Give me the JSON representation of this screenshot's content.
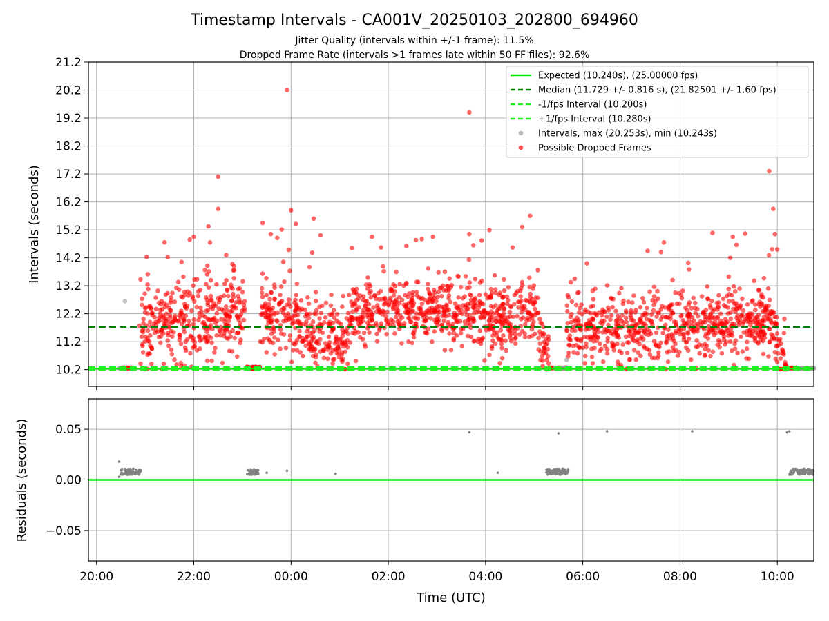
{
  "figure": {
    "title": "Timestamp Intervals - CA001V_20250103_202800_694960",
    "subtitle_1": "Jitter Quality (intervals within +/-1 frame): 11.5%",
    "subtitle_2": "Dropped Frame Rate (intervals >1 frames late within 50 FF files): 92.6%"
  },
  "colors": {
    "expected": "#00ee00",
    "median": "#008000",
    "fps_interval": "#22ee22",
    "intervals": "#999999",
    "dropped": "#ff0000",
    "residuals": "#808080",
    "grid": "#b0b0b0"
  },
  "chart_data": [
    {
      "type": "scatter",
      "panel": "top",
      "ylabel": "Intervals (seconds)",
      "xlabel": "",
      "ylim": [
        9.6,
        21.2
      ],
      "y_ticks": [
        "10.2",
        "11.2",
        "12.2",
        "13.2",
        "14.2",
        "15.2",
        "16.2",
        "17.2",
        "18.2",
        "19.2",
        "20.2",
        "21.2"
      ],
      "grid": true,
      "legend_position": "top-right",
      "legend": [
        {
          "label": "Expected (10.240s), (25.00000 fps)",
          "style": "solid-line",
          "color_key": "expected"
        },
        {
          "label": "Median (11.729 +/- 0.816 s), (21.82501 +/- 1.60 fps)",
          "style": "dashed-line",
          "color_key": "median"
        },
        {
          "label": "-1/fps Interval (10.200s)",
          "style": "dashed-line",
          "color_key": "fps_interval"
        },
        {
          "label": "+1/fps Interval (10.280s)",
          "style": "dashed-line",
          "color_key": "fps_interval"
        },
        {
          "label": "Intervals, max (20.253s), min (10.243s)",
          "style": "dot",
          "color_key": "intervals"
        },
        {
          "label": "Possible Dropped Frames",
          "style": "dot",
          "color_key": "dropped"
        }
      ],
      "reference_lines": {
        "expected": 10.24,
        "median": 11.729,
        "minus_fps": 10.2,
        "plus_fps": 10.28
      },
      "dense_segments": [
        {
          "start": "20:53",
          "end": "23:05",
          "trend": "rise",
          "base": 11.9,
          "spread": 0.65
        },
        {
          "start": "23:05",
          "end": "23:22",
          "trend": "flat",
          "base": 10.26,
          "spread": 0.02
        },
        {
          "start": "23:22",
          "end": "01:10",
          "trend": "fall",
          "base": 11.9,
          "spread": 0.6
        },
        {
          "start": "01:10",
          "end": "04:15",
          "trend": "hump",
          "base": 12.1,
          "spread": 0.6
        },
        {
          "start": "04:15",
          "end": "05:05",
          "trend": "rise",
          "base": 12.2,
          "spread": 0.6
        },
        {
          "start": "05:05",
          "end": "05:18",
          "trend": "fall",
          "base": 11.2,
          "spread": 0.5
        },
        {
          "start": "05:40",
          "end": "09:55",
          "trend": "rise",
          "base": 11.8,
          "spread": 0.6
        },
        {
          "start": "09:55",
          "end": "10:12",
          "trend": "fall",
          "base": 11.0,
          "spread": 0.5
        }
      ],
      "flat_clusters": [
        {
          "start": "20:28",
          "end": "20:40",
          "value": 10.25,
          "color_key": "intervals"
        },
        {
          "start": "20:32",
          "end": "20:45",
          "value": 10.26,
          "color_key": "dropped"
        },
        {
          "start": "23:05",
          "end": "23:20",
          "value": 10.26,
          "color_key": "dropped"
        },
        {
          "start": "05:18",
          "end": "05:40",
          "value": 10.26,
          "color_key": "dropped"
        },
        {
          "start": "05:25",
          "end": "05:42",
          "value": 10.25,
          "color_key": "intervals"
        },
        {
          "start": "10:10",
          "end": "10:25",
          "value": 10.26,
          "color_key": "dropped"
        },
        {
          "start": "10:25",
          "end": "10:45",
          "value": 10.25,
          "color_key": "intervals"
        }
      ],
      "outliers": [
        {
          "t": "20:35",
          "y": 12.65,
          "color_key": "intervals"
        },
        {
          "t": "21:55",
          "y": 14.85,
          "color_key": "dropped"
        },
        {
          "t": "22:00",
          "y": 14.95,
          "color_key": "dropped"
        },
        {
          "t": "22:20",
          "y": 14.75,
          "color_key": "dropped"
        },
        {
          "t": "22:30",
          "y": 17.1,
          "color_key": "dropped"
        },
        {
          "t": "22:30",
          "y": 15.95,
          "color_key": "dropped"
        },
        {
          "t": "22:40",
          "y": 14.3,
          "color_key": "dropped"
        },
        {
          "t": "23:25",
          "y": 15.45,
          "color_key": "dropped"
        },
        {
          "t": "23:35",
          "y": 15.05,
          "color_key": "dropped"
        },
        {
          "t": "23:55",
          "y": 20.2,
          "color_key": "dropped"
        },
        {
          "t": "00:00",
          "y": 15.9,
          "color_key": "dropped"
        },
        {
          "t": "01:15",
          "y": 14.55,
          "color_key": "dropped"
        },
        {
          "t": "01:40",
          "y": 14.95,
          "color_key": "dropped"
        },
        {
          "t": "02:55",
          "y": 14.95,
          "color_key": "dropped"
        },
        {
          "t": "03:40",
          "y": 19.4,
          "color_key": "dropped"
        },
        {
          "t": "03:40",
          "y": 15.05,
          "color_key": "dropped"
        },
        {
          "t": "03:45",
          "y": 14.65,
          "color_key": "dropped"
        },
        {
          "t": "04:45",
          "y": 15.3,
          "color_key": "dropped"
        },
        {
          "t": "04:55",
          "y": 15.7,
          "color_key": "dropped"
        },
        {
          "t": "05:40",
          "y": 10.55,
          "color_key": "intervals"
        },
        {
          "t": "05:50",
          "y": 13.45,
          "color_key": "dropped"
        },
        {
          "t": "06:05",
          "y": 14.0,
          "color_key": "dropped"
        },
        {
          "t": "07:20",
          "y": 14.45,
          "color_key": "dropped"
        },
        {
          "t": "07:40",
          "y": 14.75,
          "color_key": "dropped"
        },
        {
          "t": "08:20",
          "y": 10.25,
          "color_key": "dropped"
        },
        {
          "t": "09:05",
          "y": 14.95,
          "color_key": "dropped"
        },
        {
          "t": "09:50",
          "y": 17.3,
          "color_key": "dropped"
        },
        {
          "t": "09:55",
          "y": 15.95,
          "color_key": "dropped"
        },
        {
          "t": "09:57",
          "y": 15.05,
          "color_key": "dropped"
        },
        {
          "t": "10:00",
          "y": 14.5,
          "color_key": "dropped"
        }
      ]
    },
    {
      "type": "scatter",
      "panel": "bottom",
      "ylabel": "Residuals (seconds)",
      "xlabel": "Time (UTC)",
      "ylim": [
        -0.08,
        0.08
      ],
      "y_ticks": [
        "0.05",
        "0.00",
        "−0.05"
      ],
      "x_range": [
        "19:50",
        "10:45"
      ],
      "x_ticks": [
        "20:00",
        "22:00",
        "00:00",
        "02:00",
        "04:00",
        "06:00",
        "08:00",
        "10:00"
      ],
      "grid": true,
      "zero_line_color_key": "expected",
      "clusters": [
        {
          "start": "20:30",
          "end": "20:55",
          "value": 0.008
        },
        {
          "start": "23:05",
          "end": "23:20",
          "value": 0.008
        },
        {
          "start": "05:15",
          "end": "05:42",
          "value": 0.008
        },
        {
          "start": "10:15",
          "end": "10:45",
          "value": 0.008
        }
      ],
      "points": [
        {
          "t": "20:28",
          "y": 0.018
        },
        {
          "t": "20:28",
          "y": 0.003
        },
        {
          "t": "20:38",
          "y": 0.005
        },
        {
          "t": "23:30",
          "y": 0.007
        },
        {
          "t": "23:55",
          "y": 0.009
        },
        {
          "t": "00:55",
          "y": 0.006
        },
        {
          "t": "03:40",
          "y": 0.047
        },
        {
          "t": "04:15",
          "y": 0.007
        },
        {
          "t": "05:30",
          "y": 0.046
        },
        {
          "t": "06:30",
          "y": 0.048
        },
        {
          "t": "08:15",
          "y": 0.048
        },
        {
          "t": "10:12",
          "y": 0.047
        },
        {
          "t": "10:15",
          "y": 0.048
        }
      ]
    }
  ]
}
